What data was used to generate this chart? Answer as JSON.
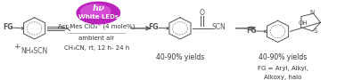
{
  "background_color": "#ffffff",
  "hv_text": "hν",
  "led_text": "White LEDs",
  "condition1": "Acr-Mes ClO₄⁻ (4 mole%)",
  "condition2": "ambient air",
  "condition3": "CH₃CN, rt, 12 h- 24 h",
  "yield1": "40-90% yields",
  "yield2": "40-90% yields",
  "fg_label": "FG = Aryl, Alkyl,",
  "fg_label2": "Alkoxy, halo",
  "ellipse_color": "#c030c0",
  "line_color": "#555555",
  "text_color": "#333333",
  "font_size": 5.5
}
